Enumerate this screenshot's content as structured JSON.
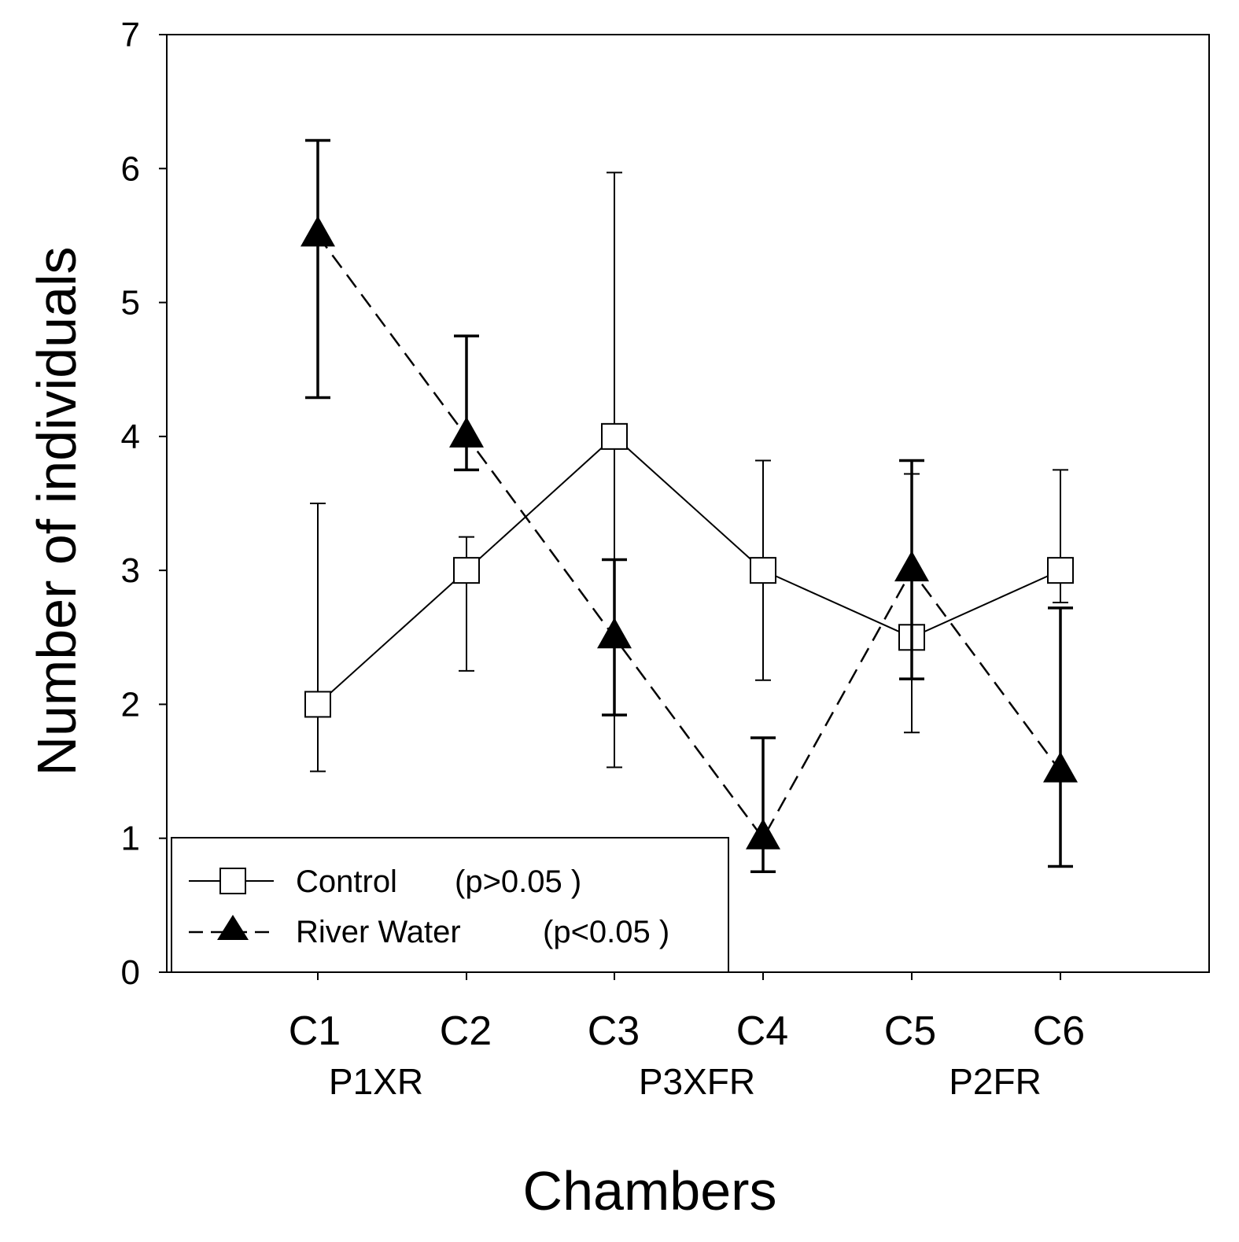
{
  "chart_data": {
    "type": "line",
    "title": "",
    "xlabel": "Chambers",
    "ylabel": "Number of individuals",
    "categories": [
      "C1",
      "C2",
      "C3",
      "C4",
      "C5",
      "C6"
    ],
    "category_groups": [
      "P1XR",
      "P3XFR",
      "P2FR"
    ],
    "ylim": [
      0,
      7
    ],
    "yticks": [
      0,
      1,
      2,
      3,
      4,
      5,
      6,
      7
    ],
    "legend_position": "bottom-left",
    "series": [
      {
        "name": "Control",
        "note": "(p>0.05 )",
        "marker": "open-square",
        "line": "solid",
        "values": [
          2,
          3,
          4,
          3,
          2.5,
          3
        ],
        "err_upper": [
          3.5,
          3.25,
          5.97,
          3.82,
          3.72,
          3.75
        ],
        "err_lower": [
          1.5,
          2.25,
          1.53,
          2.18,
          1.79,
          2.76
        ]
      },
      {
        "name": "River Water",
        "note": "(p<0.05 )",
        "marker": "filled-triangle",
        "line": "dashed",
        "values": [
          5.5,
          4,
          2.5,
          1,
          3,
          1.5
        ],
        "err_upper": [
          6.21,
          4.75,
          3.08,
          1.75,
          3.82,
          2.72
        ],
        "err_lower": [
          4.29,
          3.75,
          1.92,
          0.75,
          2.19,
          0.79
        ]
      }
    ]
  }
}
